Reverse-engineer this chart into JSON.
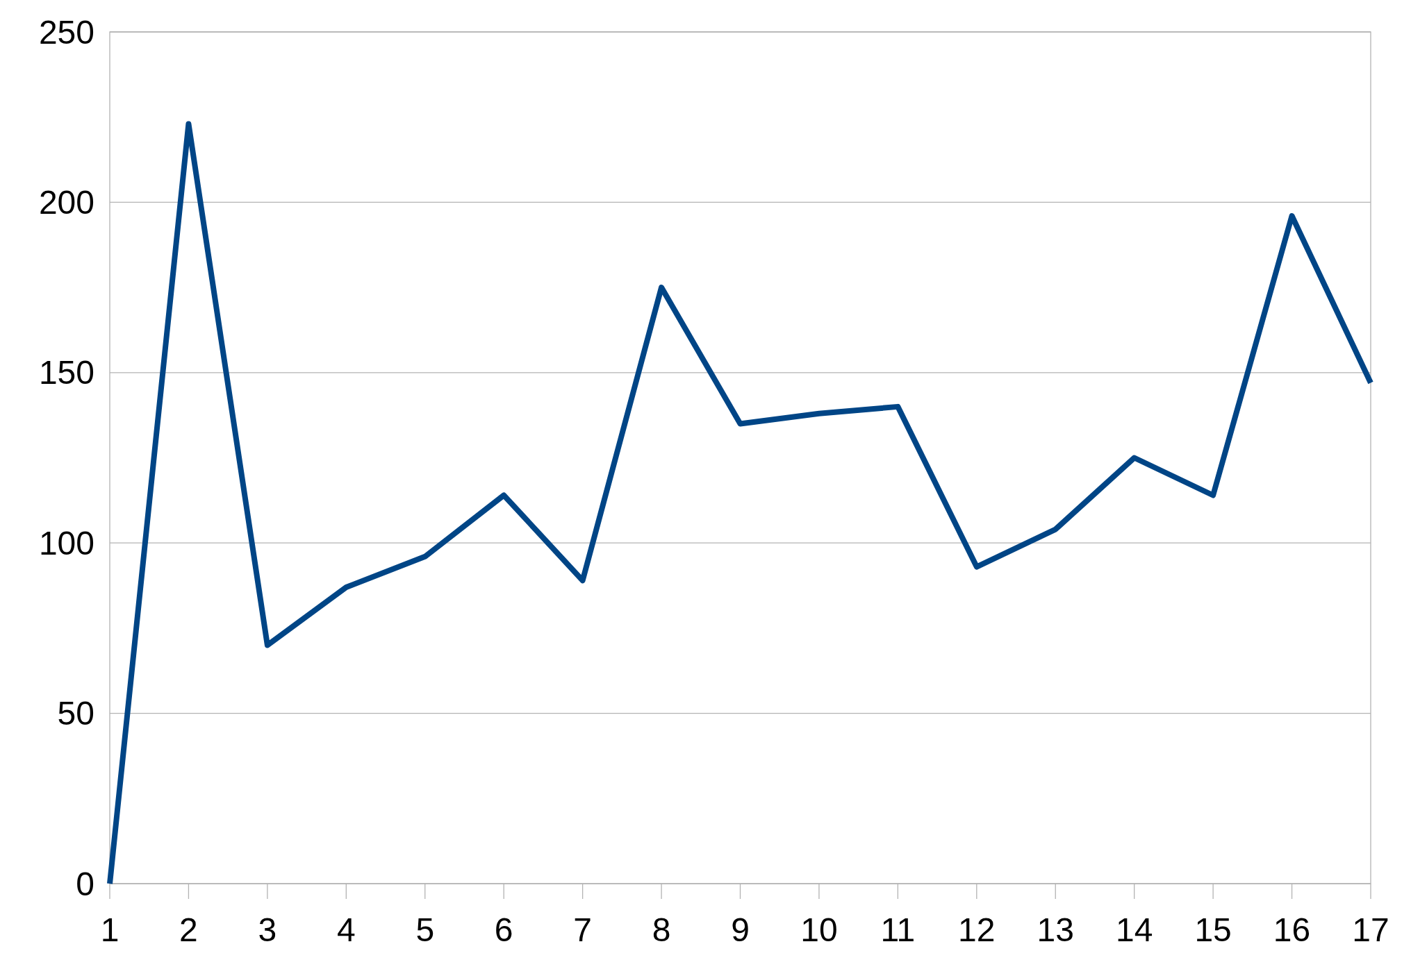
{
  "chart_data": {
    "type": "line",
    "x": [
      1,
      2,
      3,
      4,
      5,
      6,
      7,
      8,
      9,
      10,
      11,
      12,
      13,
      14,
      15,
      16,
      17
    ],
    "series": [
      {
        "color": "#004586",
        "values": [
          0,
          223,
          70,
          87,
          96,
          114,
          89,
          175,
          135,
          138,
          140,
          93,
          104,
          125,
          114,
          196,
          147
        ]
      }
    ],
    "xlim": [
      1,
      17
    ],
    "xticks": [
      1,
      2,
      3,
      4,
      5,
      6,
      7,
      8,
      9,
      10,
      11,
      12,
      13,
      14,
      15,
      16,
      17
    ],
    "ylim": [
      0,
      250
    ],
    "yticks": [
      0,
      50,
      100,
      150,
      200,
      250
    ],
    "grid": "y",
    "marker": "none",
    "line_style": "solid"
  }
}
